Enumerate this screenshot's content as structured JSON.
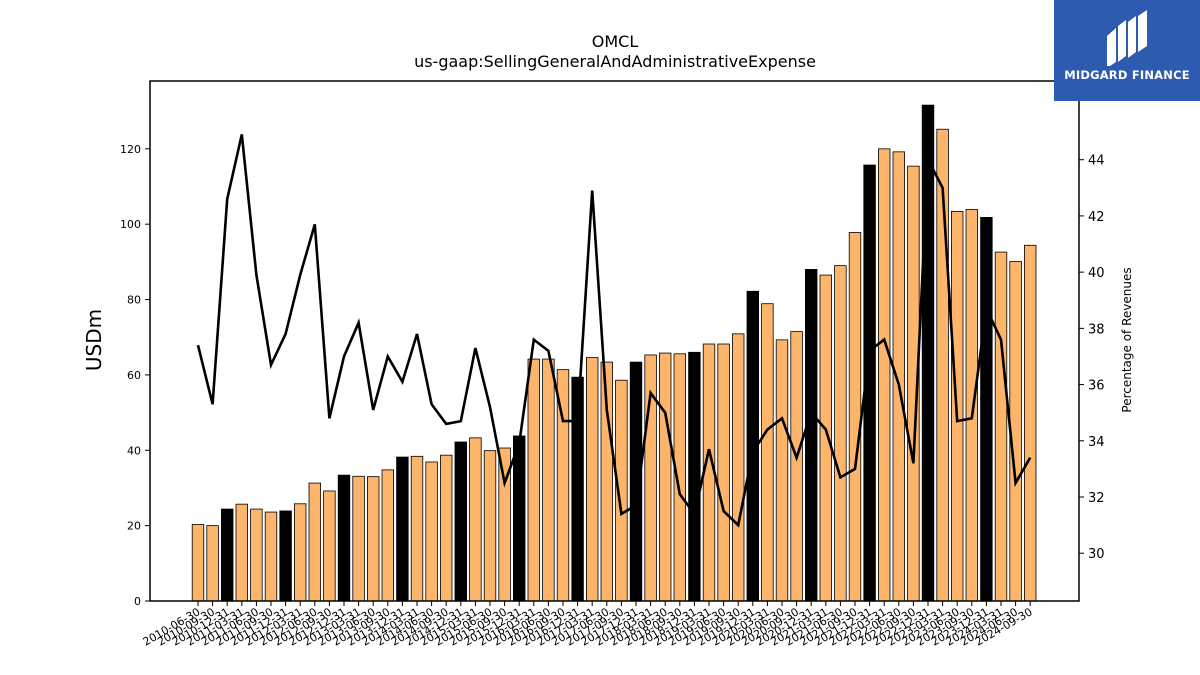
{
  "chart_data": {
    "type": "bar",
    "title": "OMCL",
    "subtitle": "us-gaap:SellingGeneralAndAdministrativeExpense",
    "ylabel": "USDm",
    "y2label": "Percentage of Revenues",
    "ylim": [
      0,
      138
    ],
    "y2lim": [
      28.3,
      46.8
    ],
    "yticks": [
      0,
      20,
      40,
      60,
      80,
      100,
      120
    ],
    "y2ticks": [
      30,
      32,
      34,
      36,
      38,
      40,
      42,
      44
    ],
    "categories": [
      "2010-06-30",
      "2010-09-30",
      "2010-12-31",
      "2011-03-31",
      "2011-06-30",
      "2011-09-30",
      "2011-12-31",
      "2012-03-31",
      "2012-06-30",
      "2012-09-30",
      "2012-12-31",
      "2013-03-31",
      "2013-06-30",
      "2013-09-30",
      "2013-12-31",
      "2014-03-31",
      "2014-06-30",
      "2014-09-30",
      "2014-12-31",
      "2015-03-31",
      "2015-06-30",
      "2015-09-30",
      "2015-12-31",
      "2016-03-31",
      "2016-06-30",
      "2016-09-30",
      "2016-12-31",
      "2017-03-31",
      "2017-06-30",
      "2017-09-30",
      "2017-12-31",
      "2018-03-31",
      "2018-06-30",
      "2018-09-30",
      "2018-12-31",
      "2019-03-31",
      "2019-06-30",
      "2019-09-30",
      "2019-12-31",
      "2020-03-31",
      "2020-06-30",
      "2020-09-30",
      "2020-12-31",
      "2021-03-31",
      "2021-06-30",
      "2021-09-30",
      "2021-12-31",
      "2022-03-31",
      "2022-06-30",
      "2022-09-30",
      "2022-12-31",
      "2023-03-31",
      "2023-06-30",
      "2023-09-30",
      "2023-12-31",
      "2024-03-31",
      "2024-06-30",
      "2024-09-30"
    ],
    "bars": {
      "name": "SG&A",
      "values": [
        20.3,
        20,
        24.4,
        25.7,
        24.4,
        23.6,
        23.9,
        25.8,
        31.3,
        29.2,
        33.4,
        33.1,
        33,
        34.8,
        38.2,
        38.4,
        36.9,
        38.7,
        42.2,
        43.3,
        39.9,
        40.6,
        43.8,
        64.2,
        64.2,
        61.4,
        59.4,
        64.6,
        63.4,
        58.6,
        63.4,
        65.3,
        65.8,
        65.6,
        66,
        68.2,
        68.2,
        70.9,
        82.2,
        78.9,
        69.3,
        71.5,
        88,
        86.5,
        89,
        97.8,
        115.7,
        120,
        119.2,
        115.4,
        131.6,
        125.2,
        103.4,
        103.9,
        101.8,
        92.6,
        90.1,
        94.4
      ],
      "highlighted": [
        false,
        false,
        true,
        false,
        false,
        false,
        true,
        false,
        false,
        false,
        true,
        false,
        false,
        false,
        true,
        false,
        false,
        false,
        true,
        false,
        false,
        false,
        true,
        false,
        false,
        false,
        true,
        false,
        false,
        false,
        true,
        false,
        false,
        false,
        true,
        false,
        false,
        false,
        true,
        false,
        false,
        false,
        true,
        false,
        false,
        false,
        true,
        false,
        false,
        false,
        true,
        false,
        false,
        false,
        true,
        false,
        false,
        false
      ],
      "color": "#fdb46b",
      "highlight_color": "#000000"
    },
    "line": {
      "name": "Percentage of Revenues",
      "values": [
        37.4,
        35.3,
        42.6,
        44.9,
        39.9,
        36.7,
        37.8,
        39.9,
        41.7,
        34.8,
        37,
        38.2,
        35.1,
        37,
        36.1,
        37.8,
        35.3,
        34.6,
        34.7,
        37.3,
        35.2,
        32.5,
        33.9,
        37.6,
        37.2,
        34.7,
        34.7,
        42.9,
        35.1,
        31.4,
        31.7,
        35.7,
        35,
        32.1,
        31.4,
        33.7,
        31.5,
        31,
        33.6,
        34.4,
        34.8,
        33.4,
        35,
        34.4,
        32.7,
        33,
        37.2,
        37.6,
        36,
        33.2,
        44,
        43,
        34.7,
        34.8,
        38.7,
        37.6,
        32.5,
        33.4
      ],
      "color": "#000000"
    },
    "grid": false
  },
  "logo": {
    "text": "MIDGARD FINANCE",
    "background": "#2d5bb0"
  }
}
